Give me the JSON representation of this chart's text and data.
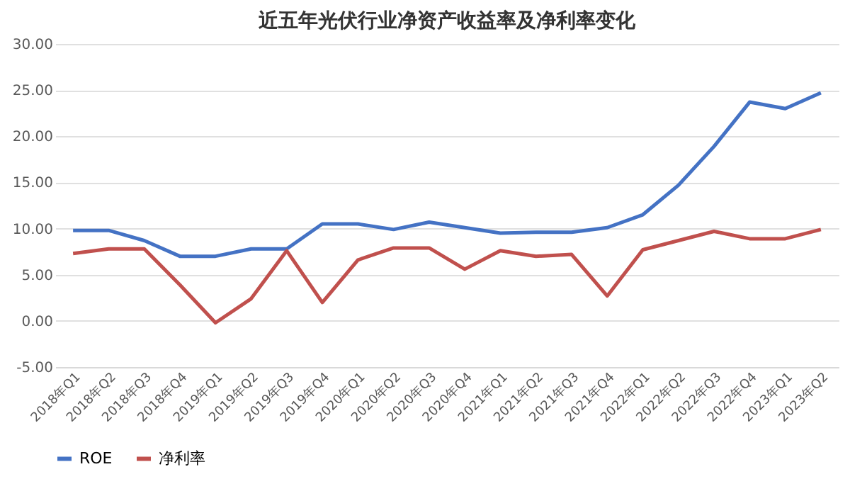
{
  "chart_data": {
    "type": "line",
    "title": "近五年光伏行业净资产收益率及净利率变化",
    "categories": [
      "2018年Q1",
      "2018年Q2",
      "2018年Q3",
      "2018年Q4",
      "2019年Q1",
      "2019年Q2",
      "2019年Q3",
      "2019年Q4",
      "2020年Q1",
      "2020年Q2",
      "2020年Q3",
      "2020年Q4",
      "2021年Q1",
      "2021年Q2",
      "2021年Q3",
      "2021年Q4",
      "2022年Q1",
      "2022年Q2",
      "2022年Q3",
      "2022年Q4",
      "2023年Q1",
      "2023年Q2"
    ],
    "series": [
      {
        "name": "ROE",
        "color": "#4472c4",
        "values": [
          9.8,
          9.8,
          8.7,
          7.0,
          7.0,
          7.8,
          7.8,
          10.5,
          10.5,
          9.9,
          10.7,
          10.1,
          9.5,
          9.6,
          9.6,
          10.1,
          11.5,
          14.7,
          18.9,
          23.7,
          23.0,
          24.7
        ]
      },
      {
        "name": "净利率",
        "color": "#c0504d",
        "values": [
          7.3,
          7.8,
          7.8,
          3.9,
          -0.2,
          2.4,
          7.6,
          2.0,
          6.6,
          7.9,
          7.9,
          5.6,
          7.6,
          7.0,
          7.2,
          2.7,
          7.7,
          8.7,
          9.7,
          8.9,
          8.9,
          9.9
        ]
      }
    ],
    "ylim": [
      -5,
      30
    ],
    "yticks": [
      {
        "value": -5,
        "label": "-5.00"
      },
      {
        "value": 0,
        "label": "0.00"
      },
      {
        "value": 5,
        "label": "5.00"
      },
      {
        "value": 10,
        "label": "10.00"
      },
      {
        "value": 15,
        "label": "15.00"
      },
      {
        "value": 20,
        "label": "20.00"
      },
      {
        "value": 25,
        "label": "25.00"
      },
      {
        "value": 30,
        "label": "30.00"
      }
    ],
    "grid": "y",
    "legend": "bottom",
    "marker": "none",
    "line_style": "solid"
  }
}
